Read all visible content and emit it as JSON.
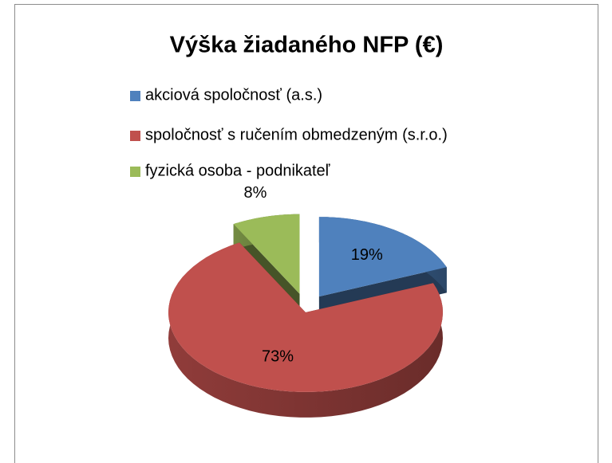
{
  "chart_data": {
    "type": "pie",
    "title": "Výška žiadaného NFP (€)",
    "categories": [
      "akciová spoločnosť (a.s.)",
      "spoločnosť s ručením obmedzeným (s.r.o.)",
      "fyzická osoba - podnikateľ"
    ],
    "values": [
      19,
      73,
      8
    ],
    "value_labels": [
      "19%",
      "73%",
      "8%"
    ],
    "colors": [
      "#4f81bd",
      "#c0504d",
      "#9bbb59"
    ],
    "legend": "top"
  }
}
